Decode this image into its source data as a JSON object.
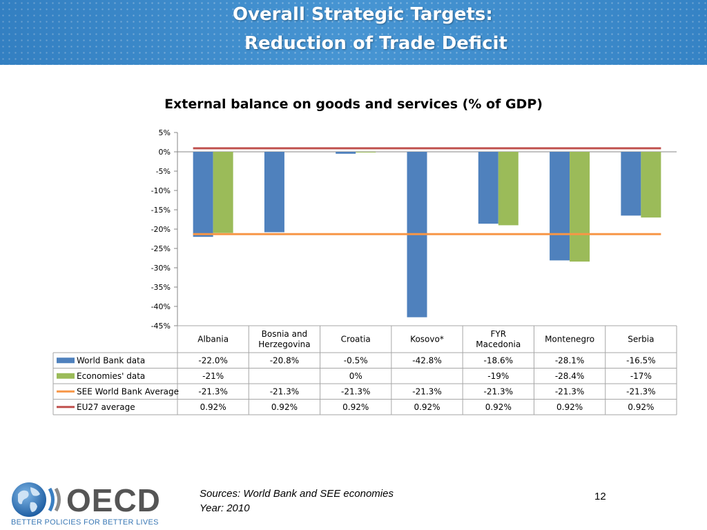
{
  "slide": {
    "title_line1": "Overall Strategic Targets:",
    "title_line2": "Reduction of Trade Deficit",
    "sources_line1": "Sources: World Bank and SEE economies",
    "sources_line2": "Year: 2010",
    "page_number": "12",
    "logo_text": "OECD",
    "tagline": "BETTER POLICIES FOR BETTER LIVES"
  },
  "chart_data": {
    "type": "bar",
    "title": "External balance on goods and services (% of GDP)",
    "categories": [
      [
        "Albania"
      ],
      [
        "Bosnia and",
        "Herzegovina"
      ],
      [
        "Croatia"
      ],
      [
        "Kosovo*"
      ],
      [
        "FYR",
        "Macedonia"
      ],
      [
        "Montenegro"
      ],
      [
        "Serbia"
      ]
    ],
    "y_ticks": [
      "5%",
      "0%",
      "-5%",
      "-10%",
      "-15%",
      "-20%",
      "-25%",
      "-30%",
      "-35%",
      "-40%",
      "-45%"
    ],
    "ylim": [
      -45,
      5
    ],
    "series": [
      {
        "name": "World Bank data",
        "kind": "bar",
        "color": "#4f81bd",
        "values": [
          -22.0,
          -20.8,
          -0.5,
          -42.8,
          -18.6,
          -28.1,
          -16.5
        ],
        "labels": [
          "-22.0%",
          "-20.8%",
          "-0.5%",
          "-42.8%",
          "-18.6%",
          "-28.1%",
          "-16.5%"
        ]
      },
      {
        "name": "Economies' data",
        "kind": "bar",
        "color": "#9bbb59",
        "values": [
          -21,
          null,
          0,
          null,
          -19,
          -28.4,
          -17
        ],
        "labels": [
          "-21%",
          "",
          "0%",
          "",
          "-19%",
          "-28.4%",
          "-17%"
        ]
      },
      {
        "name": "SEE World Bank Average",
        "kind": "line",
        "color": "#f79646",
        "values": [
          -21.3,
          -21.3,
          -21.3,
          -21.3,
          -21.3,
          -21.3,
          -21.3
        ],
        "labels": [
          "-21.3%",
          "-21.3%",
          "-21.3%",
          "-21.3%",
          "-21.3%",
          "-21.3%",
          "-21.3%"
        ]
      },
      {
        "name": "EU27 average",
        "kind": "line",
        "color": "#c0504d",
        "values": [
          0.92,
          0.92,
          0.92,
          0.92,
          0.92,
          0.92,
          0.92
        ],
        "labels": [
          "0.92%",
          "0.92%",
          "0.92%",
          "0.92%",
          "0.92%",
          "0.92%",
          "0.92%"
        ]
      }
    ]
  }
}
